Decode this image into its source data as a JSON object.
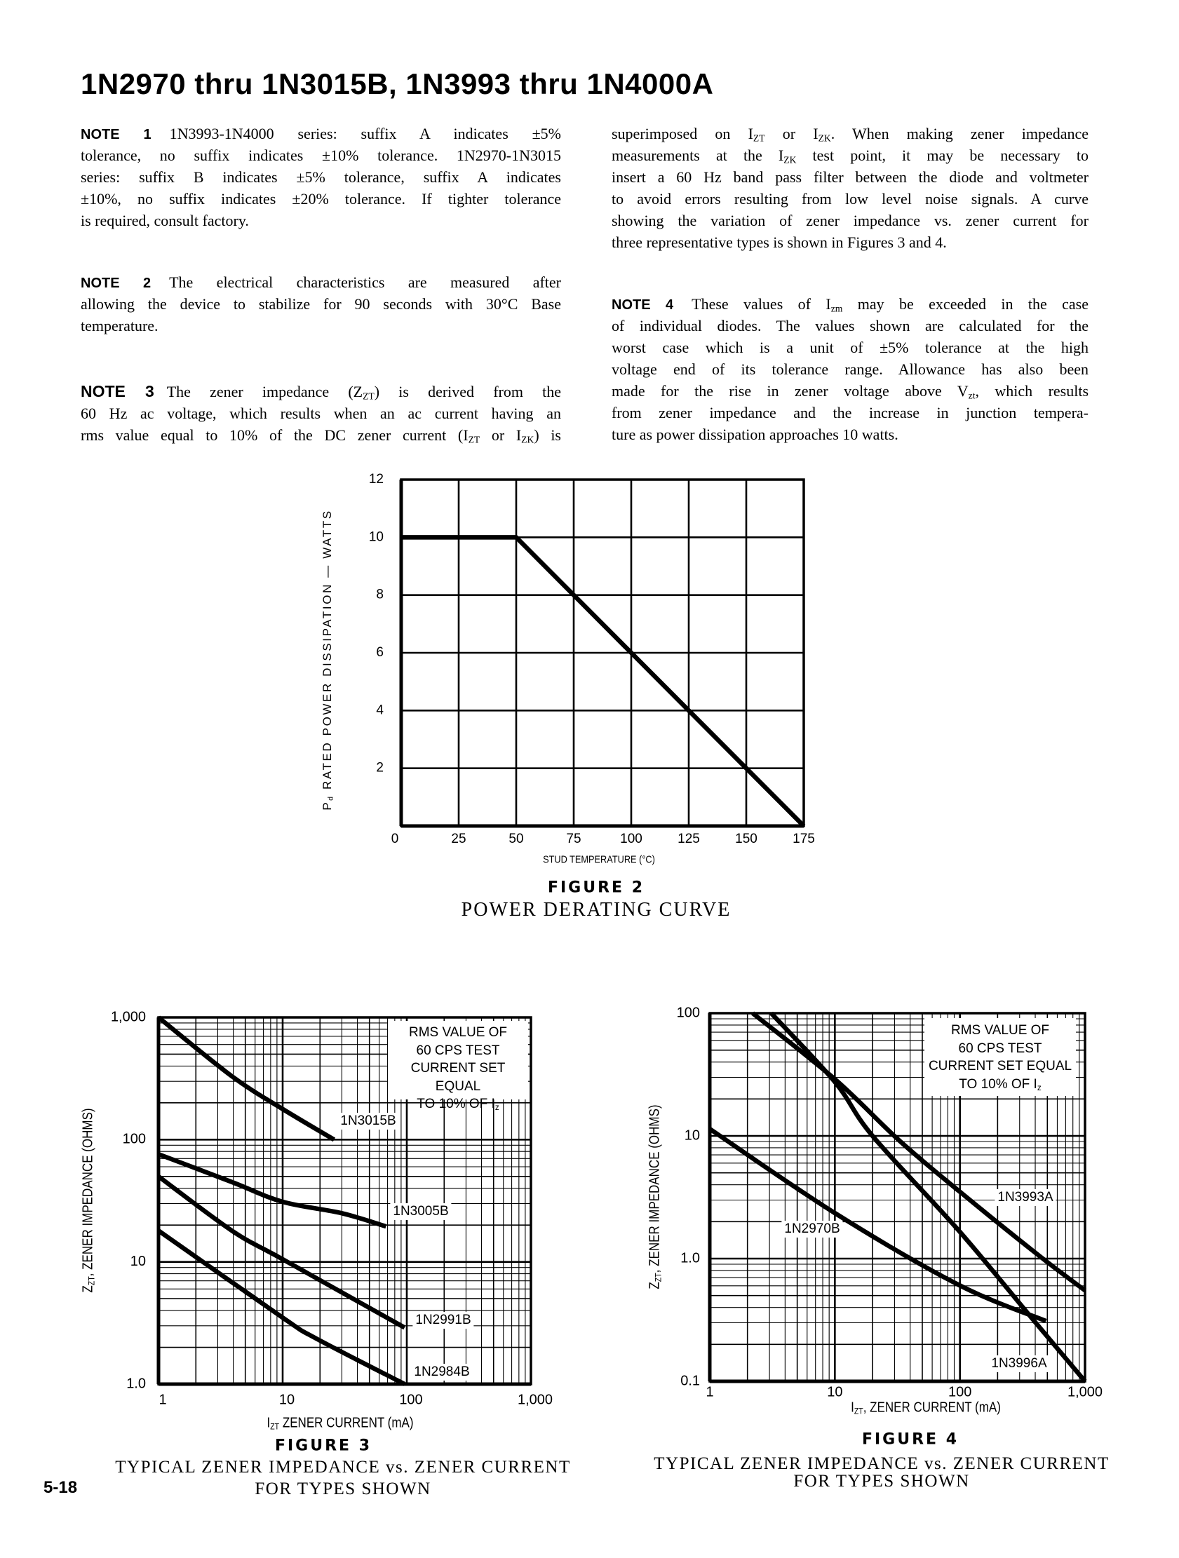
{
  "header": {
    "title": "1N2970 thru 1N3015B, 1N3993 thru 1N4000A"
  },
  "notes_left": [
    {
      "label": "NOTE 1",
      "lines": [
        [
          "1N3993-1N4000 series: suffix A indicates ±5%"
        ],
        [
          "tolerance, no suffix indicates ±10% tolerance. 1N2970-1N3015"
        ],
        [
          "series: suffix B indicates ±5% tolerance, suffix A indicates"
        ],
        [
          "±10%, no suffix indicates ±20% tolerance. If tighter tolerance"
        ],
        [
          "is required, consult factory."
        ]
      ]
    },
    {
      "label": "NOTE 2",
      "lines": [
        [
          "The electrical characteristics are measured after"
        ],
        [
          "allowing the device to stabilize for 90 seconds with 30°C Base"
        ],
        [
          "temperature."
        ]
      ]
    },
    {
      "label": "NOTE 3",
      "lines": [
        [
          "The zener impedance (Z",
          {
            "sub": "ZT"
          },
          ") is derived from the"
        ],
        [
          "60 Hz ac voltage, which results when an ac current having an"
        ],
        [
          "rms value equal to 10% of the DC zener current (I",
          {
            "sub": "ZT"
          },
          " or I",
          {
            "sub": "ZK"
          },
          ") is"
        ]
      ]
    }
  ],
  "notes_right": [
    {
      "label": "",
      "lines": [
        [
          "superimposed on I",
          {
            "sub": "ZT"
          },
          " or I",
          {
            "sub": "ZK"
          },
          ". When making zener impedance"
        ],
        [
          "measurements at the I",
          {
            "sub": "ZK"
          },
          " test point, it may be necessary to"
        ],
        [
          "insert a 60 Hz band pass filter between the diode and voltmeter"
        ],
        [
          "to avoid errors resulting from low level noise signals. A curve"
        ],
        [
          "showing the variation of zener impedance vs. zener current for"
        ],
        [
          "three representative types is shown in Figures 3 and 4."
        ]
      ]
    },
    {
      "label": "NOTE 4",
      "lines": [
        [
          "These values of I",
          {
            "sub": "zm"
          },
          " may be exceeded in the case"
        ],
        [
          "of individual diodes. The values shown are calculated for the"
        ],
        [
          "worst case which is a unit of ±5% tolerance at the high"
        ],
        [
          "voltage end of its tolerance range. Allowance has also been"
        ],
        [
          "made for the rise in zener voltage above V",
          {
            "sub": "zt"
          },
          ", which results"
        ],
        [
          "from zener impedance and the increase in junction tempera-"
        ],
        [
          "ture as power dissipation approaches 10 watts."
        ]
      ]
    }
  ],
  "page_number": "5-18",
  "chart_data": [
    {
      "id": "figure-2",
      "type": "line",
      "figure_label": "FIGURE 2",
      "caption": [
        "POWER DERATING CURVE"
      ],
      "xlabel": "STUD TEMPERATURE (°C)",
      "ylabel": [
        "P",
        {
          "sub": "d"
        },
        " RATED POWER DISSIPATION — WATTS"
      ],
      "xscale": "linear",
      "yscale": "linear",
      "xlim": [
        0,
        175
      ],
      "ylim": [
        0,
        12
      ],
      "grid": true,
      "x_ticks": [
        {
          "v": 0,
          "label": "0"
        },
        {
          "v": 25,
          "label": "25"
        },
        {
          "v": 50,
          "label": "50"
        },
        {
          "v": 75,
          "label": "75"
        },
        {
          "v": 100,
          "label": "100"
        },
        {
          "v": 125,
          "label": "125"
        },
        {
          "v": 150,
          "label": "150"
        },
        {
          "v": 175,
          "label": "175"
        }
      ],
      "y_ticks": [
        {
          "v": 2,
          "label": "2"
        },
        {
          "v": 4,
          "label": "4"
        },
        {
          "v": 6,
          "label": "6"
        },
        {
          "v": 8,
          "label": "8"
        },
        {
          "v": 10,
          "label": "10"
        },
        {
          "v": 12,
          "label": "12"
        }
      ],
      "series": [
        {
          "x": [
            0,
            50,
            175
          ],
          "y": [
            10,
            10,
            0
          ]
        }
      ]
    },
    {
      "id": "figure-3",
      "type": "line",
      "figure_label": "FIGURE 3",
      "caption": [
        "TYPICAL ZENER IMPEDANCE vs. ZENER CURRENT",
        "FOR TYPES SHOWN"
      ],
      "xlabel": [
        "I",
        {
          "sub": "ZT"
        },
        " ZENER CURRENT (mA)"
      ],
      "ylabel": [
        "Z",
        {
          "sub": "ZT"
        },
        ", ZENER IMPEDANCE (OHMS)"
      ],
      "xscale": "log",
      "yscale": "log",
      "xlim": [
        1,
        1000
      ],
      "ylim": [
        1,
        1000
      ],
      "grid": true,
      "x_ticks": [
        {
          "v": 1,
          "label": "1"
        },
        {
          "v": 10,
          "label": "10"
        },
        {
          "v": 100,
          "label": "100"
        },
        {
          "v": 1000,
          "label": "1,000"
        }
      ],
      "y_ticks": [
        {
          "v": 1,
          "label": "1.0"
        },
        {
          "v": 10,
          "label": "10"
        },
        {
          "v": 100,
          "label": "100"
        },
        {
          "v": 1000,
          "label": "1,000"
        }
      ],
      "annotation": [
        [
          "RMS VALUE OF"
        ],
        [
          "60 CPS TEST"
        ],
        [
          "CURRENT SET EQUAL"
        ],
        [
          "TO 10% OF I",
          {
            "sub": "z"
          }
        ]
      ],
      "series": [
        {
          "name": "1N3015B",
          "x": [
            1,
            3.9,
            10,
            26
          ],
          "y": [
            1000,
            330,
            178,
            100
          ]
        },
        {
          "name": "1N3005B",
          "x": [
            1,
            3.9,
            10,
            30,
            68
          ],
          "y": [
            76,
            45,
            31,
            25,
            19.5
          ]
        },
        {
          "name": "1N2991B",
          "x": [
            1,
            3.9,
            10,
            96
          ],
          "y": [
            50,
            18,
            10.5,
            2.9
          ]
        },
        {
          "name": "1N2984B",
          "x": [
            1,
            10,
            18.5,
            96
          ],
          "y": [
            18,
            3.5,
            2.37,
            1.0
          ]
        }
      ]
    },
    {
      "id": "figure-4",
      "type": "line",
      "figure_label": "FIGURE 4",
      "caption": [
        "TYPICAL ZENER IMPEDANCE vs. ZENER CURRENT",
        "FOR TYPES SHOWN"
      ],
      "xlabel": [
        "I",
        {
          "sub": "ZT"
        },
        ", ZENER CURRENT (mA)"
      ],
      "ylabel": [
        "Z",
        {
          "sub": "ZT"
        },
        ", ZENER IMPEDANCE (OHMS)"
      ],
      "xscale": "log",
      "yscale": "log",
      "xlim": [
        1,
        1000
      ],
      "ylim": [
        0.1,
        100
      ],
      "grid": true,
      "x_ticks": [
        {
          "v": 1,
          "label": "1"
        },
        {
          "v": 10,
          "label": "10"
        },
        {
          "v": 100,
          "label": "100"
        },
        {
          "v": 1000,
          "label": "1,000"
        }
      ],
      "y_ticks": [
        {
          "v": 0.1,
          "label": "0.1"
        },
        {
          "v": 1,
          "label": "1.0"
        },
        {
          "v": 10,
          "label": "10"
        },
        {
          "v": 100,
          "label": "100"
        }
      ],
      "annotation": [
        [
          "RMS VALUE OF"
        ],
        [
          "60 CPS TEST"
        ],
        [
          "CURRENT SET EQUAL"
        ],
        [
          "TO 10% OF I",
          {
            "sub": "z"
          }
        ]
      ],
      "series": [
        {
          "name": "1N3993A",
          "x": [
            2.2,
            10,
            33,
            100,
            443,
            1000
          ],
          "y": [
            100,
            29,
            9.1,
            3.5,
            1.03,
            0.55
          ]
        },
        {
          "name": "1N2970B",
          "x": [
            1,
            10,
            98,
            487
          ],
          "y": [
            11.4,
            2.35,
            0.61,
            0.31
          ]
        },
        {
          "name": "1N3996A",
          "x": [
            3.1,
            10,
            20,
            100,
            373,
            1000
          ],
          "y": [
            100,
            27.5,
            10,
            1.65,
            0.33,
            0.1
          ]
        }
      ]
    }
  ]
}
